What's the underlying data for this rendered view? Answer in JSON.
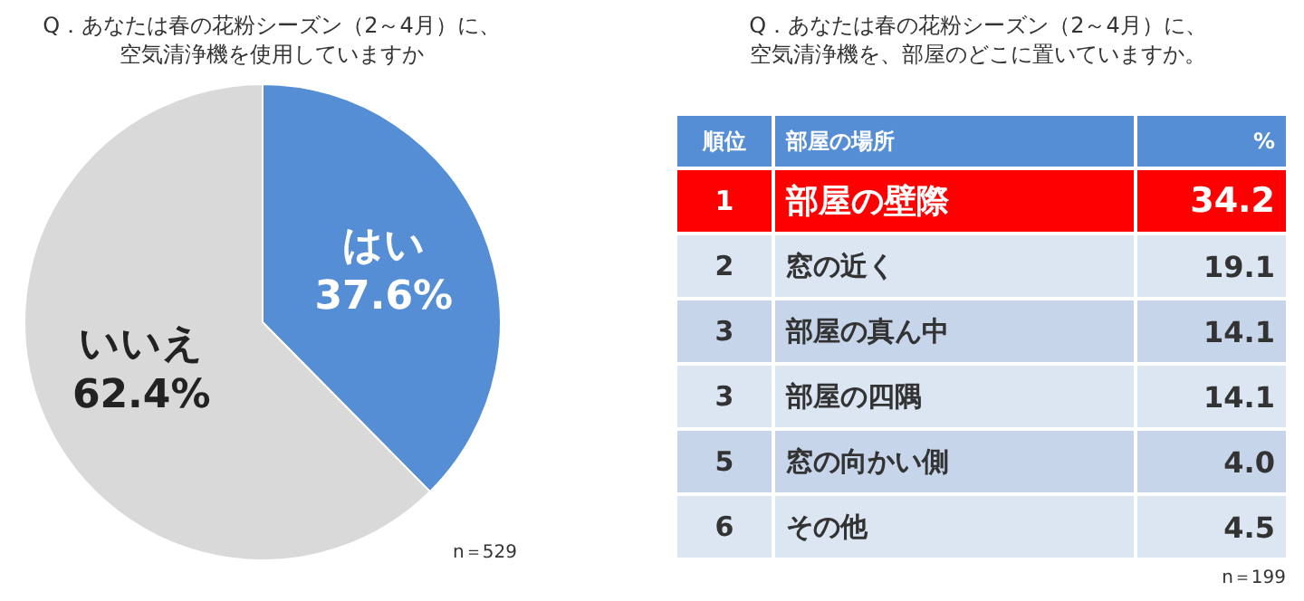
{
  "chart_data": [
    {
      "type": "pie",
      "title": "Q．あなたは春の花粉シーズン（2～4月）に、空気清浄機を使用していますか",
      "categories": [
        "はい",
        "いいえ"
      ],
      "values": [
        37.6,
        62.4
      ],
      "colors": [
        "#558ed5",
        "#d9d9d9"
      ],
      "value_labels": [
        "37.6%",
        "62.4%"
      ],
      "annotations": [
        "n＝529"
      ]
    },
    {
      "type": "other",
      "title": "Q．あなたは春の花粉シーズン（2～4月）に、空気清浄機を、部屋のどこに置いていますか。",
      "categories": [
        "部屋の壁際",
        "窓の近く",
        "部屋の真ん中",
        "部屋の四隅",
        "窓の向かい側",
        "その他"
      ],
      "values": [
        34.2,
        19.1,
        14.1,
        14.1,
        4.0,
        4.5
      ],
      "value_labels": [
        "34.2",
        "19.1",
        "14.1",
        "14.1",
        "4.0",
        "4.5"
      ],
      "colors": [
        "#ff0000",
        "#dce6f2",
        "#c6d5ea",
        "#dce6f2",
        "#c6d5ea",
        "#dce6f2"
      ],
      "annotations": [
        "順位",
        "部屋の場所",
        "%",
        "1",
        "2",
        "3",
        "3",
        "5",
        "6",
        "n＝199"
      ]
    }
  ]
}
